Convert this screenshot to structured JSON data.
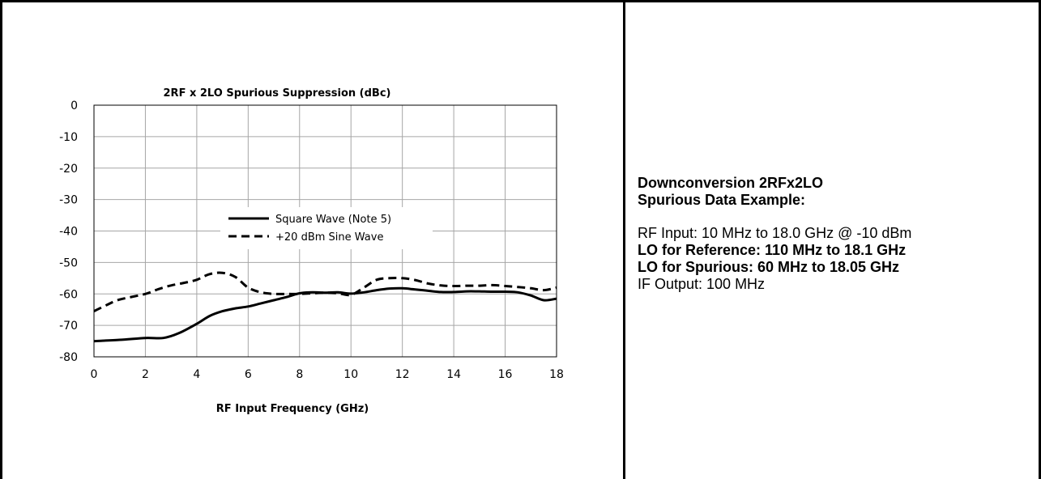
{
  "chart_data": {
    "type": "line",
    "title": "2RF x 2LO Spurious Suppression (dBc)",
    "xlabel": "RF Input Frequency (GHz)",
    "ylabel": "",
    "xlim": [
      0,
      18
    ],
    "ylim": [
      -80,
      0
    ],
    "xticks": [
      0,
      2,
      4,
      6,
      8,
      10,
      12,
      14,
      16,
      18
    ],
    "yticks": [
      0,
      -10,
      -20,
      -30,
      -40,
      -50,
      -60,
      -70,
      -80
    ],
    "grid": true,
    "legend_position": "center-left",
    "series": [
      {
        "name": "Square Wave (Note 5)",
        "style": "solid",
        "color": "#000000",
        "x": [
          0,
          1,
          2,
          2.7,
          3.3,
          4,
          4.5,
          5,
          5.5,
          6,
          6.5,
          7,
          7.5,
          8,
          8.5,
          9,
          9.5,
          10,
          10.5,
          11,
          11.5,
          12,
          12.5,
          13,
          13.5,
          14,
          14.5,
          15,
          15.5,
          16,
          16.5,
          17,
          17.5,
          18
        ],
        "y": [
          -75,
          -74.6,
          -74,
          -74,
          -72.5,
          -69.5,
          -67,
          -65.5,
          -64.6,
          -64,
          -63,
          -62,
          -61,
          -59.8,
          -59.5,
          -59.6,
          -59.5,
          -59.9,
          -59.5,
          -58.8,
          -58.3,
          -58.2,
          -58.6,
          -59,
          -59.4,
          -59.4,
          -59.2,
          -59.2,
          -59.3,
          -59.3,
          -59.5,
          -60.5,
          -62,
          -61.5
        ]
      },
      {
        "name": "+20 dBm Sine Wave",
        "style": "dashed",
        "color": "#000000",
        "x": [
          0,
          0.5,
          1,
          2,
          2.5,
          3,
          3.5,
          4,
          4.5,
          5,
          5.5,
          6,
          6.5,
          7,
          7.5,
          8,
          8.5,
          9,
          9.5,
          10,
          10.5,
          11,
          11.5,
          12,
          12.5,
          13,
          13.5,
          14,
          14.5,
          15,
          15.5,
          16,
          16.5,
          17,
          17.5,
          18
        ],
        "y": [
          -65.5,
          -63.5,
          -61.8,
          -60,
          -58.5,
          -57.3,
          -56.5,
          -55.5,
          -53.7,
          -53.3,
          -54.6,
          -58,
          -59.5,
          -60,
          -60,
          -60,
          -59.8,
          -59.6,
          -59.8,
          -60.3,
          -58,
          -55.5,
          -55,
          -55,
          -55.6,
          -56.7,
          -57.3,
          -57.5,
          -57.4,
          -57.4,
          -57.2,
          -57.5,
          -57.8,
          -58.2,
          -58.8,
          -58
        ]
      }
    ]
  },
  "panel": {
    "title_line1": "Downconversion 2RFx2LO",
    "title_line2": "Spurious Data Example:",
    "rf_input": "RF Input: 10 MHz to 18.0 GHz @ -10 dBm",
    "lo_reference": "LO for Reference: 110 MHz to 18.1 GHz",
    "lo_spurious": "LO for Spurious: 60 MHz to 18.05 GHz",
    "if_output": "IF Output: 100 MHz"
  }
}
